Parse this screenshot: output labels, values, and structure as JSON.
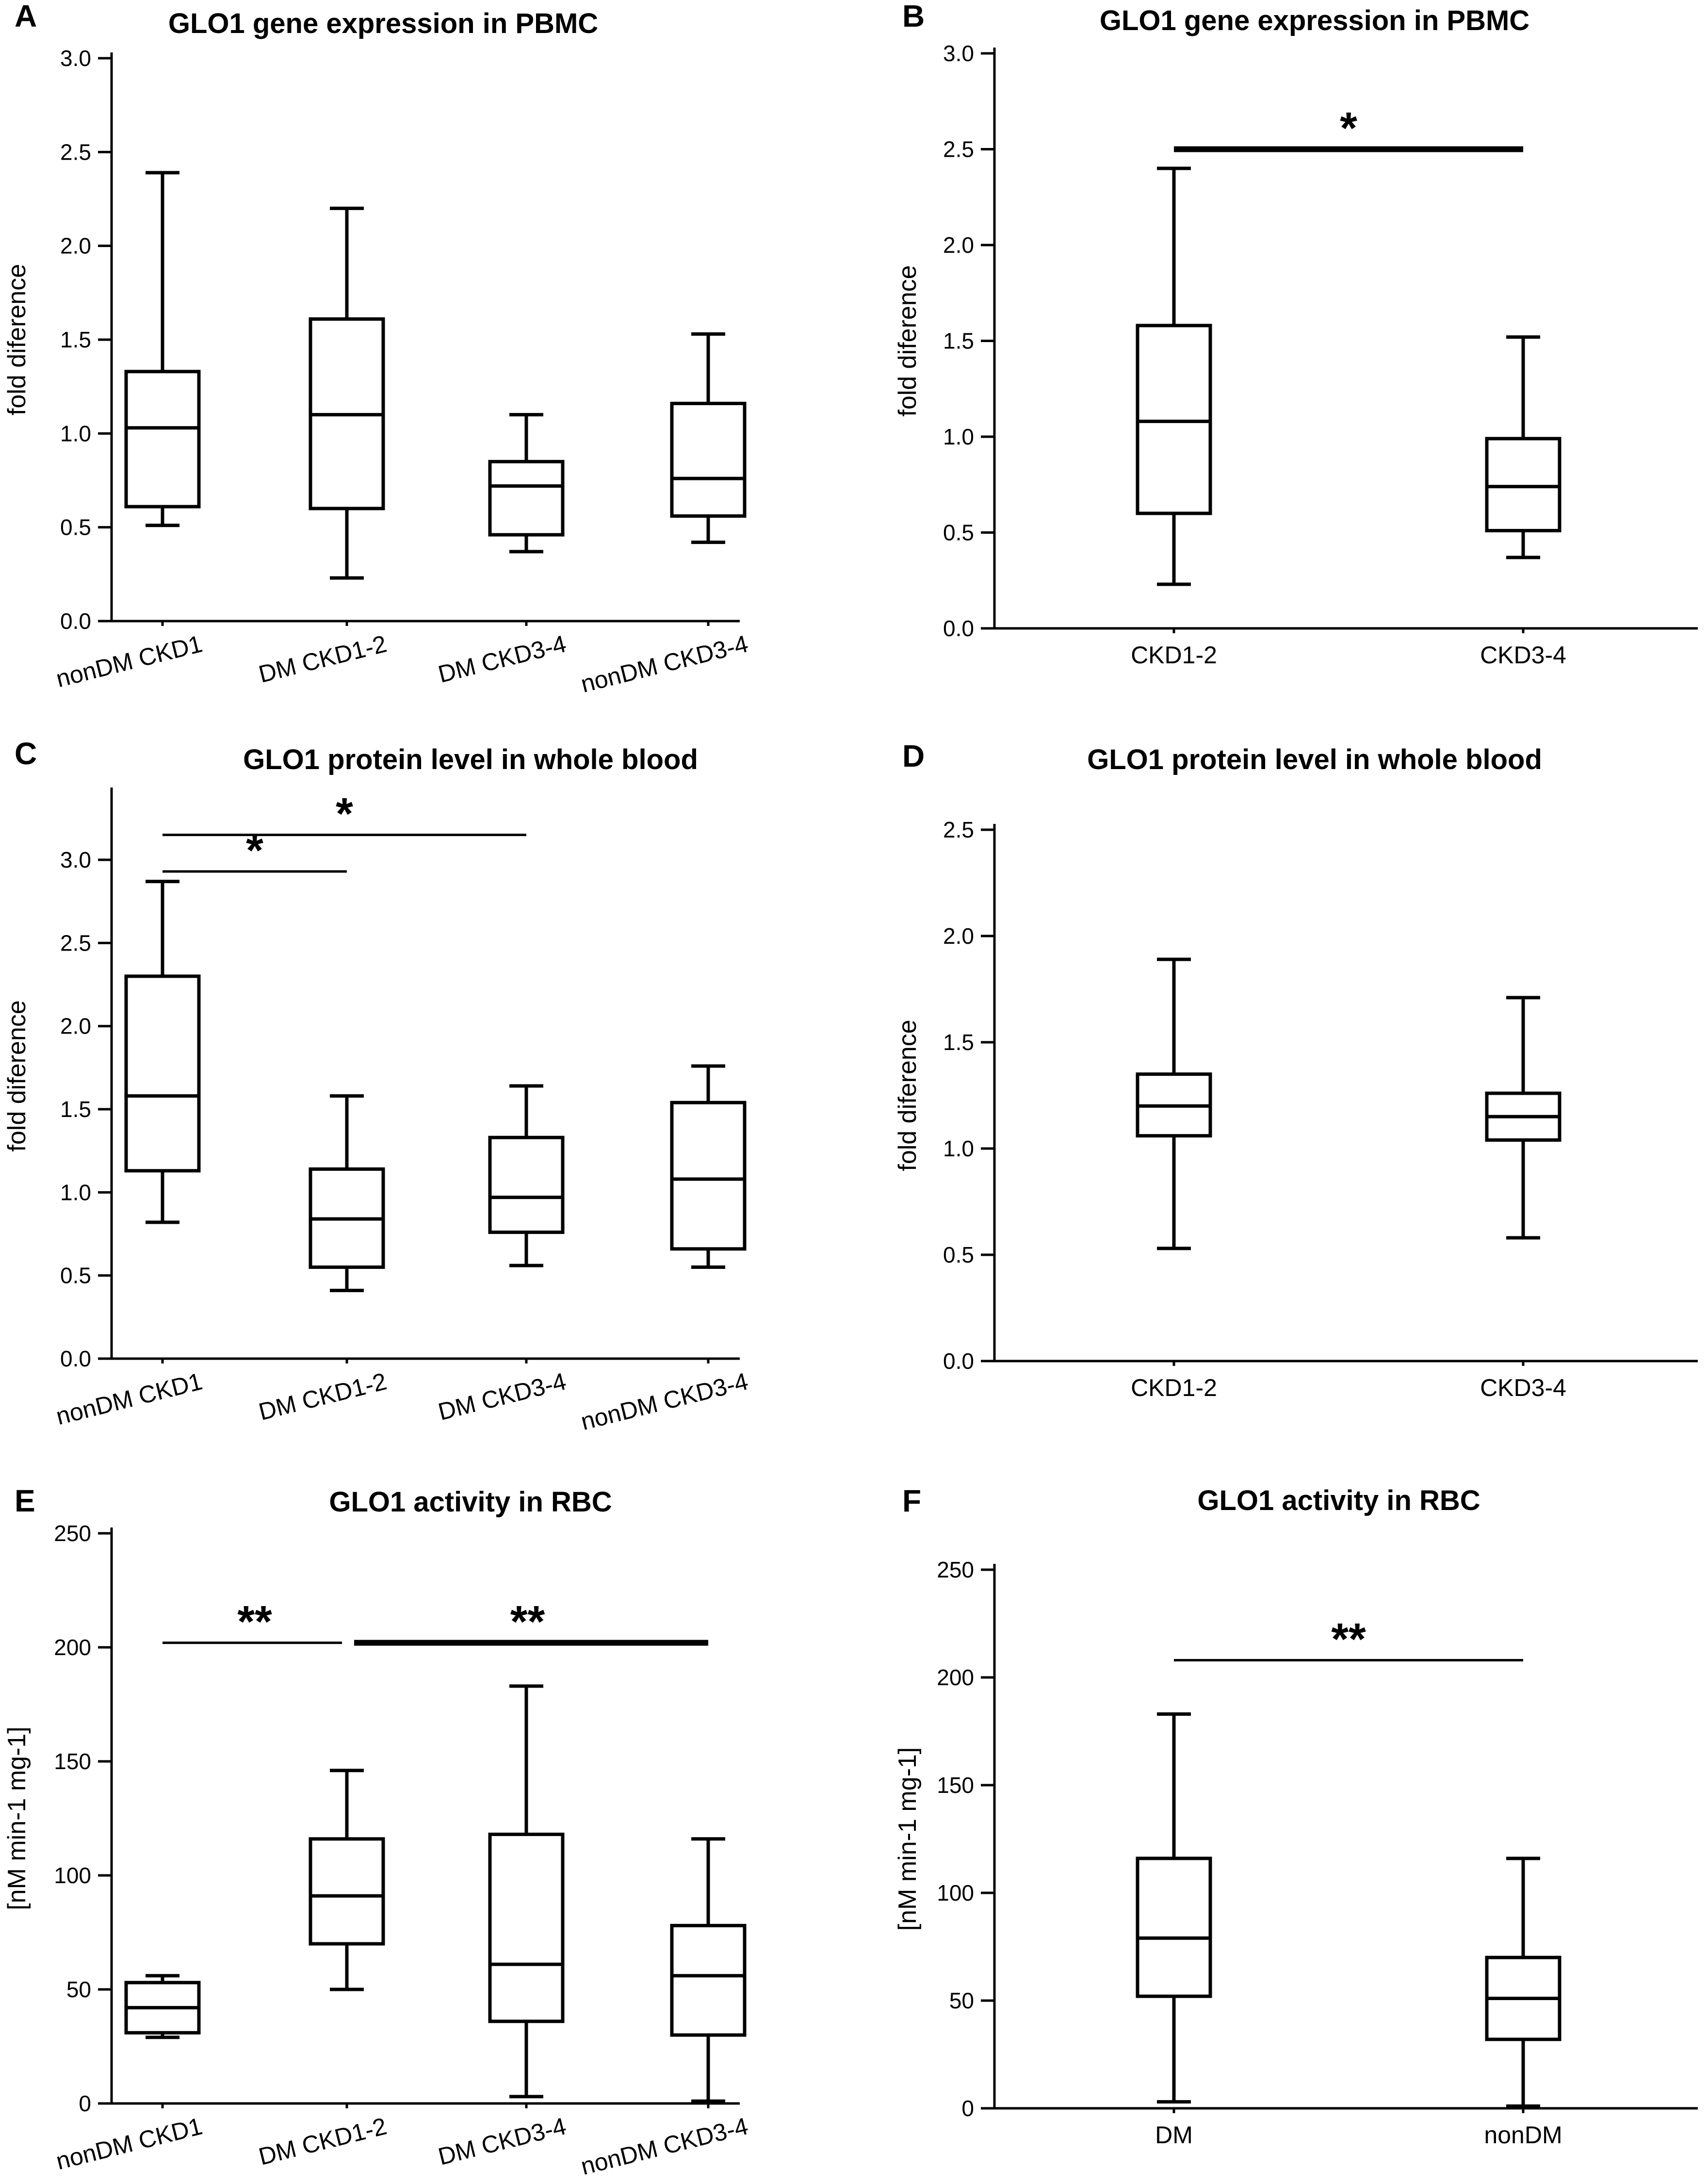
{
  "chart_data": [
    {
      "type": "box",
      "panel": "A",
      "title": "GLO1 gene expression in PBMC",
      "ylabel": "fold diference",
      "ylim": [
        0,
        3.0
      ],
      "yticks": [
        "0.0",
        "0.5",
        "1.0",
        "1.5",
        "2.0",
        "2.5",
        "3.0"
      ],
      "categories": [
        "nonDM CKD1",
        "DM CKD1-2",
        "DM CKD3-4",
        "nonDM CKD3-4"
      ],
      "boxes": [
        {
          "min": 0.51,
          "q1": 0.61,
          "median": 1.03,
          "q3": 1.33,
          "max": 2.39
        },
        {
          "min": 0.23,
          "q1": 0.6,
          "median": 1.1,
          "q3": 1.61,
          "max": 2.2
        },
        {
          "min": 0.37,
          "q1": 0.46,
          "median": 0.72,
          "q3": 0.85,
          "max": 1.1
        },
        {
          "min": 0.42,
          "q1": 0.56,
          "median": 0.76,
          "q3": 1.16,
          "max": 1.53
        }
      ],
      "significance": []
    },
    {
      "type": "box",
      "panel": "B",
      "title": "GLO1 gene expression in PBMC",
      "ylabel": "fold diference",
      "ylim": [
        0,
        3.0
      ],
      "yticks": [
        "0.0",
        "0.5",
        "1.0",
        "1.5",
        "2.0",
        "2.5",
        "3.0"
      ],
      "categories": [
        "CKD1-2",
        "CKD3-4"
      ],
      "boxes": [
        {
          "min": 0.23,
          "q1": 0.6,
          "median": 1.08,
          "q3": 1.58,
          "max": 2.4
        },
        {
          "min": 0.37,
          "q1": 0.51,
          "median": 0.74,
          "q3": 0.99,
          "max": 1.52
        }
      ],
      "significance": [
        {
          "from": 0,
          "to": 1,
          "y": 2.5,
          "label": "*",
          "thick": true
        }
      ]
    },
    {
      "type": "box",
      "panel": "C",
      "title": "GLO1 protein level in whole blood",
      "ylabel": "fold diference",
      "ylim": [
        0,
        3.4
      ],
      "yticks": [
        "0.0",
        "0.5",
        "1.0",
        "1.5",
        "2.0",
        "2.5",
        "3.0"
      ],
      "categories": [
        "nonDM CKD1",
        "DM CKD1-2",
        "DM CKD3-4",
        "nonDM CKD3-4"
      ],
      "boxes": [
        {
          "min": 0.82,
          "q1": 1.13,
          "median": 1.58,
          "q3": 2.3,
          "max": 2.87
        },
        {
          "min": 0.41,
          "q1": 0.55,
          "median": 0.84,
          "q3": 1.14,
          "max": 1.58
        },
        {
          "min": 0.56,
          "q1": 0.76,
          "median": 0.97,
          "q3": 1.33,
          "max": 1.64
        },
        {
          "min": 0.55,
          "q1": 0.66,
          "median": 1.08,
          "q3": 1.54,
          "max": 1.76
        }
      ],
      "significance": [
        {
          "from": 0,
          "to": 1,
          "y": 2.93,
          "label": "*"
        },
        {
          "from": 0,
          "to": 2,
          "y": 3.15,
          "label": "*"
        }
      ]
    },
    {
      "type": "box",
      "panel": "D",
      "title": "GLO1 protein level in whole blood",
      "ylabel": "fold diference",
      "ylim": [
        0,
        2.5
      ],
      "yticks": [
        "0.0",
        "0.5",
        "1.0",
        "1.5",
        "2.0",
        "2.5"
      ],
      "categories": [
        "CKD1-2",
        "CKD3-4"
      ],
      "boxes": [
        {
          "min": 0.53,
          "q1": 1.06,
          "median": 1.2,
          "q3": 1.35,
          "max": 1.89
        },
        {
          "min": 0.58,
          "q1": 1.04,
          "median": 1.15,
          "q3": 1.26,
          "max": 1.71
        }
      ],
      "significance": []
    },
    {
      "type": "box",
      "panel": "E",
      "title": "GLO1 activity in RBC",
      "ylabel": "[nM min-1 mg-1]",
      "ylim": [
        0,
        250
      ],
      "yticks": [
        "0",
        "50",
        "100",
        "150",
        "200",
        "250"
      ],
      "categories": [
        "nonDM CKD1",
        "DM CKD1-2",
        "DM CKD3-4",
        "nonDM CKD3-4"
      ],
      "boxes": [
        {
          "min": 29,
          "q1": 31,
          "median": 42,
          "q3": 53,
          "max": 56
        },
        {
          "min": 50,
          "q1": 70,
          "median": 91,
          "q3": 116,
          "max": 146
        },
        {
          "min": 3,
          "q1": 36,
          "median": 61,
          "q3": 118,
          "max": 183
        },
        {
          "min": 1,
          "q1": 30,
          "median": 56,
          "q3": 78,
          "max": 116
        }
      ],
      "significance": [
        {
          "from": 0,
          "to": 1,
          "y": 202,
          "label": "**"
        },
        {
          "from": 1,
          "to": 3,
          "y": 202,
          "label": "**",
          "thick": true
        }
      ]
    },
    {
      "type": "box",
      "panel": "F",
      "title": "GLO1 activity in RBC",
      "ylabel": "[nM min-1 mg-1]",
      "ylim": [
        0,
        250
      ],
      "yticks": [
        "0",
        "50",
        "100",
        "150",
        "200",
        "250"
      ],
      "categories": [
        "DM",
        "nonDM"
      ],
      "boxes": [
        {
          "min": 3,
          "q1": 52,
          "median": 79,
          "q3": 116,
          "max": 183
        },
        {
          "min": 1,
          "q1": 32,
          "median": 51,
          "q3": 70,
          "max": 116
        }
      ],
      "significance": [
        {
          "from": 0,
          "to": 1,
          "y": 208,
          "label": "**"
        }
      ]
    }
  ]
}
